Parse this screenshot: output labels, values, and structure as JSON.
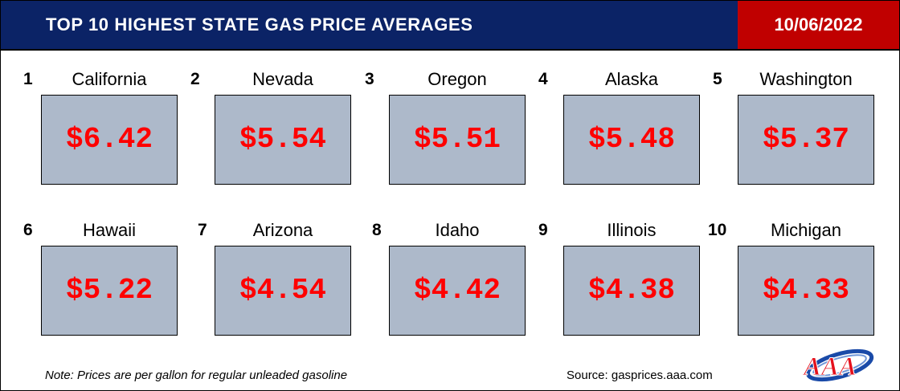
{
  "header": {
    "title": "TOP 10 HIGHEST STATE GAS PRICE AVERAGES",
    "date": "10/06/2022"
  },
  "states": [
    {
      "rank": "1",
      "name": "California",
      "price": "$6.42"
    },
    {
      "rank": "2",
      "name": "Nevada",
      "price": "$5.54"
    },
    {
      "rank": "3",
      "name": "Oregon",
      "price": "$5.51"
    },
    {
      "rank": "4",
      "name": "Alaska",
      "price": "$5.48"
    },
    {
      "rank": "5",
      "name": "Washington",
      "price": "$5.37"
    },
    {
      "rank": "6",
      "name": "Hawaii",
      "price": "$5.22"
    },
    {
      "rank": "7",
      "name": "Arizona",
      "price": "$4.54"
    },
    {
      "rank": "8",
      "name": "Idaho",
      "price": "$4.42"
    },
    {
      "rank": "9",
      "name": "Illinois",
      "price": "$4.38"
    },
    {
      "rank": "10",
      "name": "Michigan",
      "price": "$4.33"
    }
  ],
  "footer": {
    "note": "Note: Prices are per gallon for regular unleaded gasoline",
    "source": "Source: gasprices.aaa.com",
    "logo_text": "AAA"
  },
  "colors": {
    "title_bg": "#0b2366",
    "date_bg": "#c00000",
    "box_bg": "#adb9ca",
    "price_text": "#ff0000"
  }
}
